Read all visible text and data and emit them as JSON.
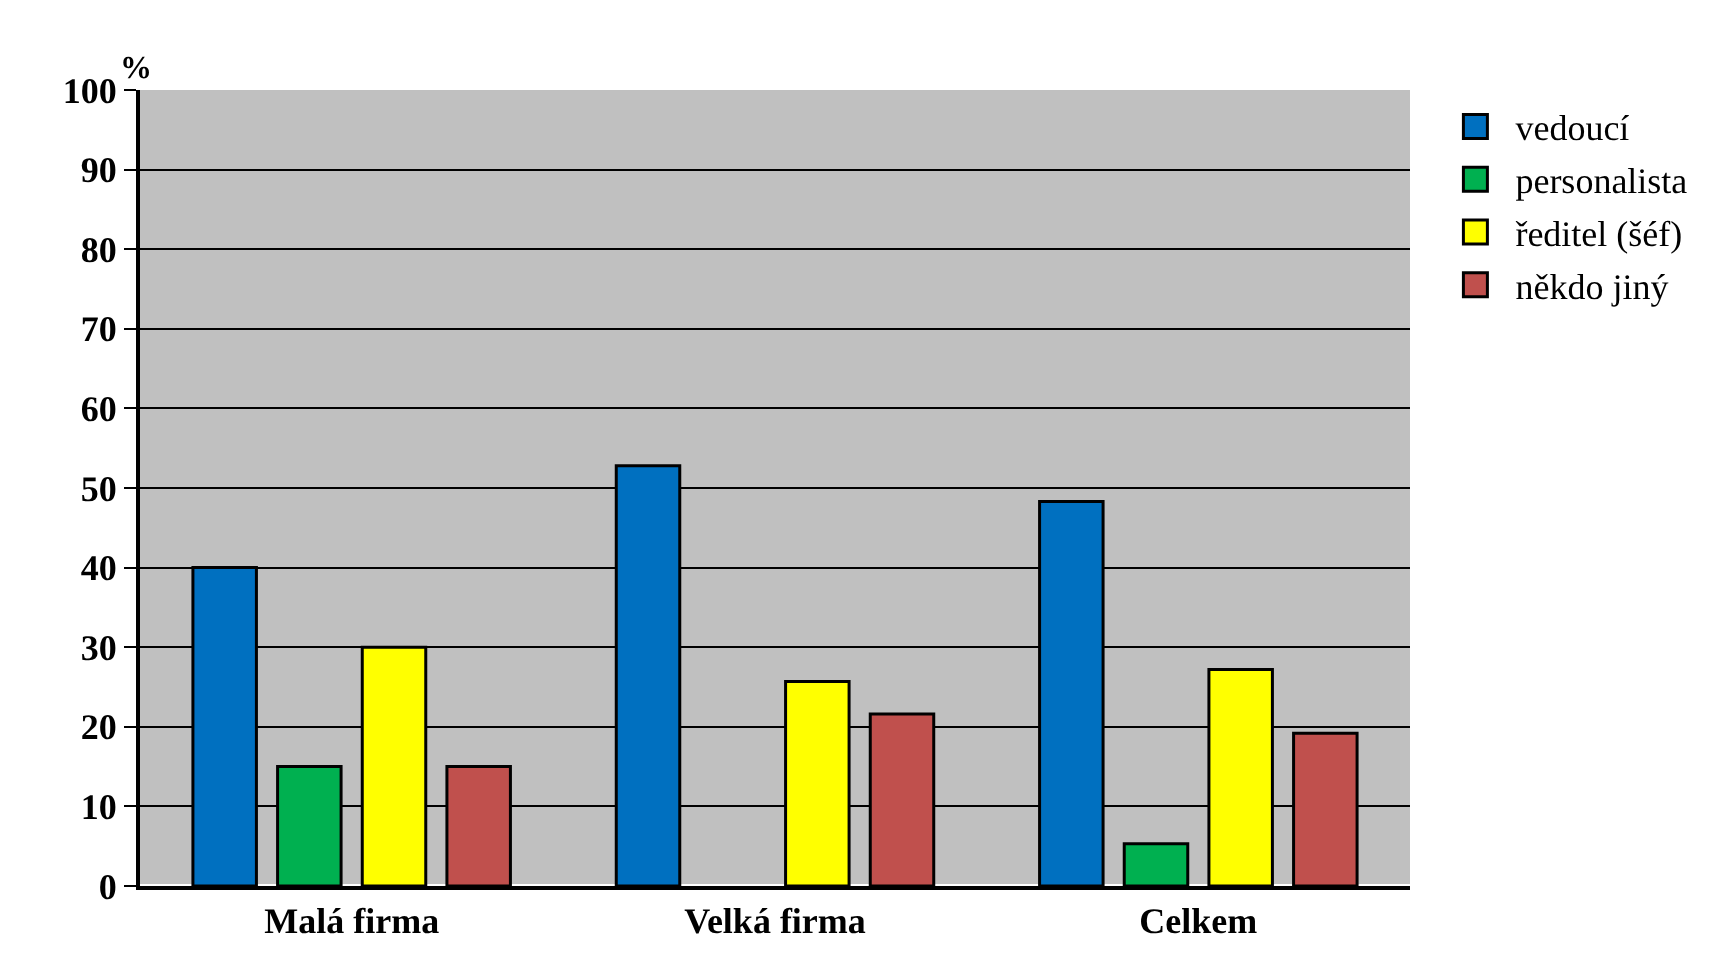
{
  "chart_data": {
    "type": "bar",
    "ylabel": "%",
    "categories": [
      "Malá firma",
      "Velká firma",
      "Celkem"
    ],
    "series": [
      {
        "name": "vedoucí",
        "color": "#0070c0",
        "values": [
          40,
          52.8,
          48.3
        ]
      },
      {
        "name": "personalista",
        "color": "#00b050",
        "values": [
          15,
          null,
          5.3
        ]
      },
      {
        "name": "ředitel (šéf)",
        "color": "#ffff00",
        "values": [
          30,
          25.7,
          27.2
        ]
      },
      {
        "name": "někdo jiný",
        "color": "#c0504d",
        "values": [
          15,
          21.6,
          19.2
        ]
      }
    ],
    "ylim": [
      0,
      100
    ],
    "yticks": [
      0,
      10,
      20,
      30,
      40,
      50,
      60,
      70,
      80,
      90,
      100
    ],
    "grid": "y",
    "legend": "right"
  }
}
